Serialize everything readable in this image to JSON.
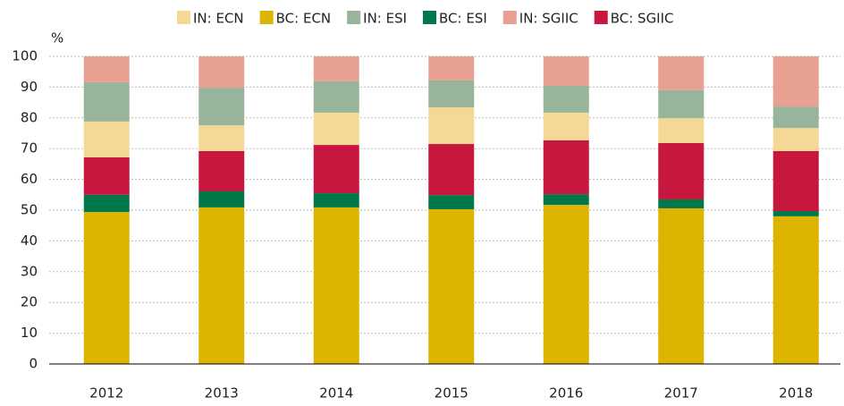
{
  "chart_data": {
    "type": "bar",
    "stacked": true,
    "y_unit": "%",
    "categories": [
      "2012",
      "2013",
      "2014",
      "2015",
      "2016",
      "2017",
      "2018"
    ],
    "series": [
      {
        "name": "IN: ECN",
        "color": "#f5d896",
        "values": [
          11.6,
          8.4,
          10.5,
          11.9,
          9.0,
          8.1,
          7.5
        ]
      },
      {
        "name": "BC: ECN",
        "color": "#ddb400",
        "values": [
          49.4,
          50.9,
          50.9,
          50.3,
          51.7,
          50.6,
          48.0
        ]
      },
      {
        "name": "IN: ESI",
        "color": "#98b59b",
        "values": [
          12.8,
          12.2,
          10.2,
          8.8,
          8.7,
          9.1,
          7.0
        ]
      },
      {
        "name": "BC: ESI",
        "color": "#00784a",
        "values": [
          5.6,
          5.2,
          4.6,
          4.6,
          3.5,
          2.9,
          1.7
        ]
      },
      {
        "name": "IN: SGIIC",
        "color": "#e8a093",
        "values": [
          8.4,
          10.2,
          8.1,
          7.8,
          9.6,
          11.0,
          16.3
        ]
      },
      {
        "name": "BC: SGIIC",
        "color": "#c8173f",
        "values": [
          12.2,
          13.1,
          15.7,
          16.6,
          17.5,
          18.3,
          19.5
        ]
      }
    ],
    "ylim": [
      0,
      100
    ],
    "yticks": [
      0,
      10,
      20,
      30,
      40,
      50,
      60,
      70,
      80,
      90,
      100
    ],
    "grid": true,
    "legend": "top"
  }
}
